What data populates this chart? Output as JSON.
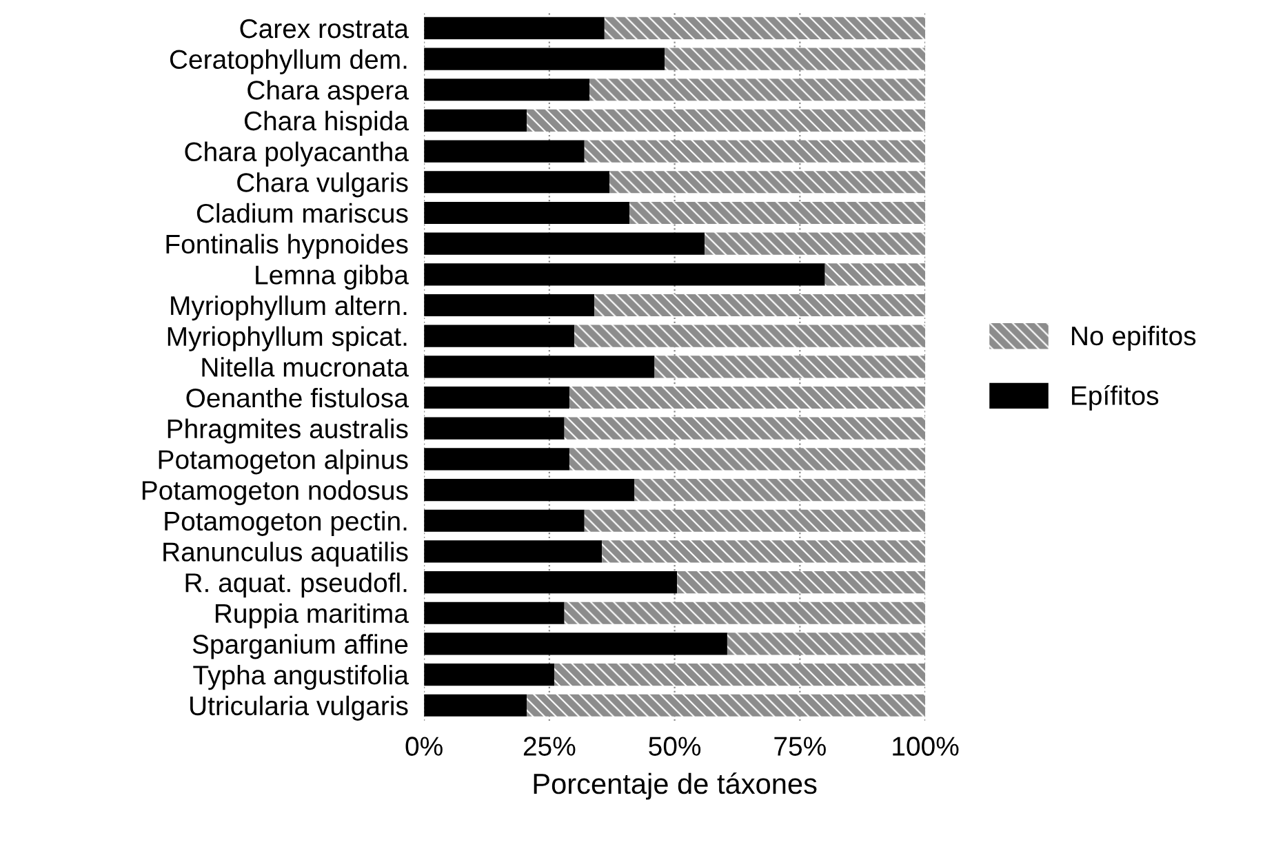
{
  "chart_data": {
    "type": "bar",
    "orientation": "horizontal",
    "stacked": true,
    "xlabel": "Porcentaje de táxones",
    "categories": [
      "Carex rostrata",
      "Ceratophyllum dem.",
      "Chara aspera",
      "Chara hispida",
      "Chara polyacantha",
      "Chara vulgaris",
      "Cladium mariscus",
      "Fontinalis hypnoides",
      "Lemna gibba",
      "Myriophyllum altern.",
      "Myriophyllum spicat.",
      "Nitella mucronata",
      "Oenanthe fistulosa",
      "Phragmites australis",
      "Potamogeton alpinus",
      "Potamogeton nodosus",
      "Potamogeton pectin.",
      "Ranunculus aquatilis",
      "R. aquat. pseudofl.",
      "Ruppia maritima",
      "Sparganium affine",
      "Typha angustifolia",
      "Utricularia vulgaris"
    ],
    "series": [
      {
        "name": "Epífitos",
        "color": "#000000",
        "values": [
          36,
          48,
          33,
          20.5,
          32,
          37,
          41,
          56,
          80,
          34,
          30,
          46,
          29,
          28,
          29,
          42,
          32,
          35.5,
          50.5,
          28,
          60.5,
          26,
          20.5
        ]
      },
      {
        "name": "No epifitos",
        "color": "#8c8c8c",
        "values": [
          64,
          52,
          67,
          79.5,
          68,
          63,
          59,
          44,
          20,
          66,
          70,
          54,
          71,
          72,
          71,
          58,
          68,
          64.5,
          49.5,
          72,
          39.5,
          74,
          79.5
        ]
      }
    ],
    "xlim": [
      0,
      100
    ],
    "xticks": [
      {
        "value": 0,
        "label": "0%"
      },
      {
        "value": 25,
        "label": "25%"
      },
      {
        "value": 50,
        "label": "50%"
      },
      {
        "value": 75,
        "label": "75%"
      },
      {
        "value": 100,
        "label": "100%"
      }
    ],
    "grid": "x",
    "legend": "right"
  }
}
